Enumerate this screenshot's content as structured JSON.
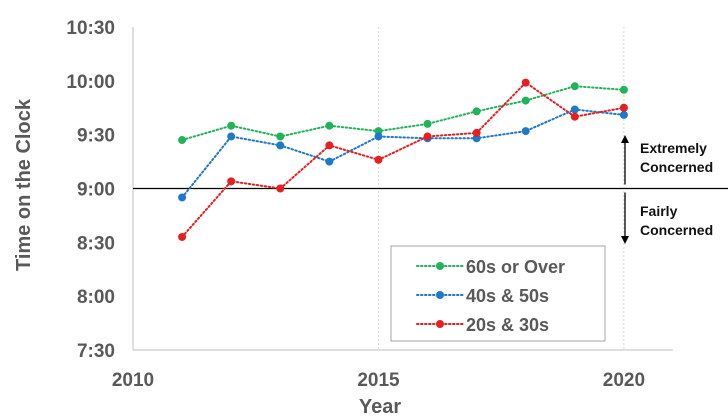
{
  "chart_data": {
    "type": "line",
    "title": "",
    "xlabel": "Year",
    "ylabel": "Time on the Clock",
    "xlim": [
      2010,
      2021
    ],
    "x_ticks": [
      "2010",
      "2015",
      "2020"
    ],
    "ylim": [
      "7:30",
      "10:30"
    ],
    "y_ticks": [
      "7:30",
      "8:00",
      "8:30",
      "9:00",
      "9:30",
      "10:00",
      "10:30"
    ],
    "grid": "vertical",
    "x": [
      2011,
      2012,
      2013,
      2014,
      2015,
      2016,
      2017,
      2018,
      2019,
      2020
    ],
    "series": [
      {
        "name": "60s or Over",
        "color": "#22b35a",
        "style": "dotted",
        "values": [
          "9:27",
          "9:35",
          "9:29",
          "9:35",
          "9:32",
          "9:36",
          "9:43",
          "9:49",
          "9:57",
          "9:55"
        ]
      },
      {
        "name": "40s & 50s",
        "color": "#1f78c8",
        "style": "dotted",
        "values": [
          "8:55",
          "9:29",
          "9:24",
          "9:15",
          "9:29",
          "9:28",
          "9:28",
          "9:32",
          "9:44",
          "9:41"
        ]
      },
      {
        "name": "20s & 30s",
        "color": "#e62020",
        "style": "dotted",
        "values": [
          "8:33",
          "9:04",
          "9:00",
          "9:24",
          "9:16",
          "9:29",
          "9:31",
          "9:59",
          "9:40",
          "9:45"
        ]
      }
    ],
    "reference_line": {
      "value": "9:00"
    },
    "annotations": [
      {
        "lines": [
          "Extremely",
          "Concerned"
        ],
        "arrow": "up"
      },
      {
        "lines": [
          "Fairly",
          "Concerned"
        ],
        "arrow": "down"
      }
    ],
    "legend_position": "bottom-right"
  }
}
